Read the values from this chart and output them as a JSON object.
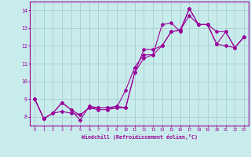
{
  "xlabel": "Windchill (Refroidissement éolien,°C)",
  "bg_color": "#c8ecec",
  "line_color": "#990099",
  "grid_color": "#aacccc",
  "xlim": [
    -0.5,
    23.5
  ],
  "ylim": [
    7.5,
    14.5
  ],
  "yticks": [
    8,
    9,
    10,
    11,
    12,
    13,
    14
  ],
  "xticks": [
    0,
    1,
    2,
    3,
    4,
    5,
    6,
    7,
    8,
    9,
    10,
    11,
    12,
    13,
    14,
    15,
    16,
    17,
    18,
    19,
    20,
    21,
    22,
    23
  ],
  "series": [
    [
      9.0,
      7.9,
      8.2,
      8.8,
      8.4,
      8.1,
      8.5,
      8.5,
      8.5,
      8.5,
      9.5,
      10.8,
      11.5,
      11.5,
      13.2,
      13.3,
      12.8,
      14.1,
      13.2,
      13.2,
      12.1,
      12.8,
      11.9,
      12.5
    ],
    [
      9.0,
      7.9,
      8.2,
      8.8,
      8.4,
      7.8,
      8.6,
      8.5,
      8.5,
      8.6,
      8.5,
      10.5,
      11.3,
      11.5,
      12.0,
      12.8,
      12.9,
      14.1,
      13.2,
      13.2,
      12.8,
      12.8,
      11.9,
      12.5
    ],
    [
      9.0,
      7.9,
      8.2,
      8.3,
      8.2,
      8.1,
      8.5,
      8.4,
      8.4,
      8.5,
      8.5,
      10.5,
      11.8,
      11.8,
      12.0,
      12.8,
      12.9,
      13.7,
      13.2,
      13.2,
      12.1,
      12.0,
      11.9,
      12.5
    ]
  ]
}
